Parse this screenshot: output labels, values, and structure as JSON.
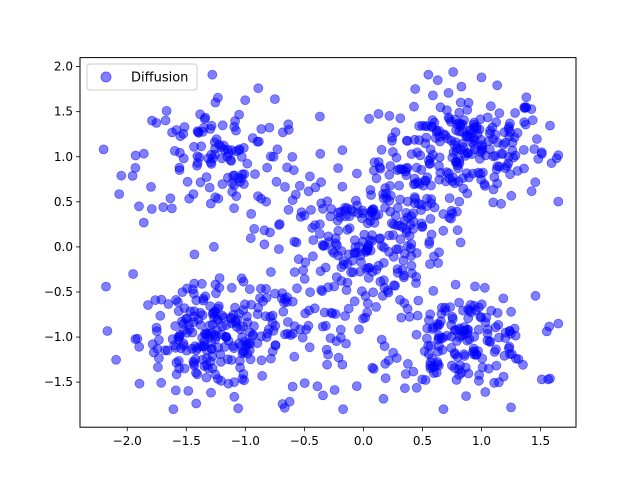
{
  "chart_data": {
    "type": "scatter",
    "title": "",
    "xlabel": "",
    "ylabel": "",
    "xlim": [
      -2.4,
      1.8
    ],
    "ylim": [
      -2.0,
      2.1
    ],
    "xticks": [
      "−2.0",
      "−1.5",
      "−1.0",
      "−0.5",
      "0.0",
      "0.5",
      "1.0",
      "1.5"
    ],
    "yticks": [
      "2.0",
      "1.5",
      "1.0",
      "0.5",
      "0.0",
      "−0.5",
      "−1.0",
      "−1.5"
    ],
    "grid": false,
    "legend_position": "top-left",
    "series": [
      {
        "name": "Diffusion",
        "color": "#0000ff",
        "opacity": 0.5,
        "clusters": [
          {
            "center": [
              0.85,
              1.1
            ],
            "spread": [
              0.35,
              0.3
            ],
            "count": 230
          },
          {
            "center": [
              -1.3,
              -1.0
            ],
            "spread": [
              0.3,
              0.28
            ],
            "count": 200
          },
          {
            "center": [
              0.85,
              -1.05
            ],
            "spread": [
              0.3,
              0.25
            ],
            "count": 160
          },
          {
            "center": [
              -1.2,
              1.0
            ],
            "spread": [
              0.35,
              0.35
            ],
            "count": 120
          },
          {
            "center": [
              -0.1,
              0.05
            ],
            "spread": [
              0.38,
              0.35
            ],
            "count": 170
          },
          {
            "center": [
              -0.4,
              -0.9
            ],
            "spread": [
              0.45,
              0.4
            ],
            "count": 100
          },
          {
            "center": [
              0.3,
              0.4
            ],
            "spread": [
              0.3,
              0.3
            ],
            "count": 70
          }
        ],
        "points": [
          [
            -2.18,
            -0.44
          ],
          [
            -2.05,
            0.79
          ],
          [
            -1.95,
            -0.3
          ],
          [
            -1.9,
            0.45
          ],
          [
            -1.86,
            0.27
          ],
          [
            -1.62,
            1.27
          ],
          [
            -1.28,
            1.91
          ],
          [
            -0.89,
            1.76
          ],
          [
            -0.75,
            1.64
          ],
          [
            0.55,
            1.91
          ],
          [
            0.76,
            1.94
          ],
          [
            1.0,
            1.88
          ],
          [
            1.38,
            1.66
          ],
          [
            1.51,
            1.05
          ],
          [
            1.58,
            -1.46
          ],
          [
            1.51,
            -1.47
          ],
          [
            1.25,
            -1.78
          ],
          [
            -1.06,
            -1.79
          ],
          [
            -0.6,
            -1.55
          ],
          [
            -1.33,
            -1.45
          ]
        ]
      }
    ]
  }
}
